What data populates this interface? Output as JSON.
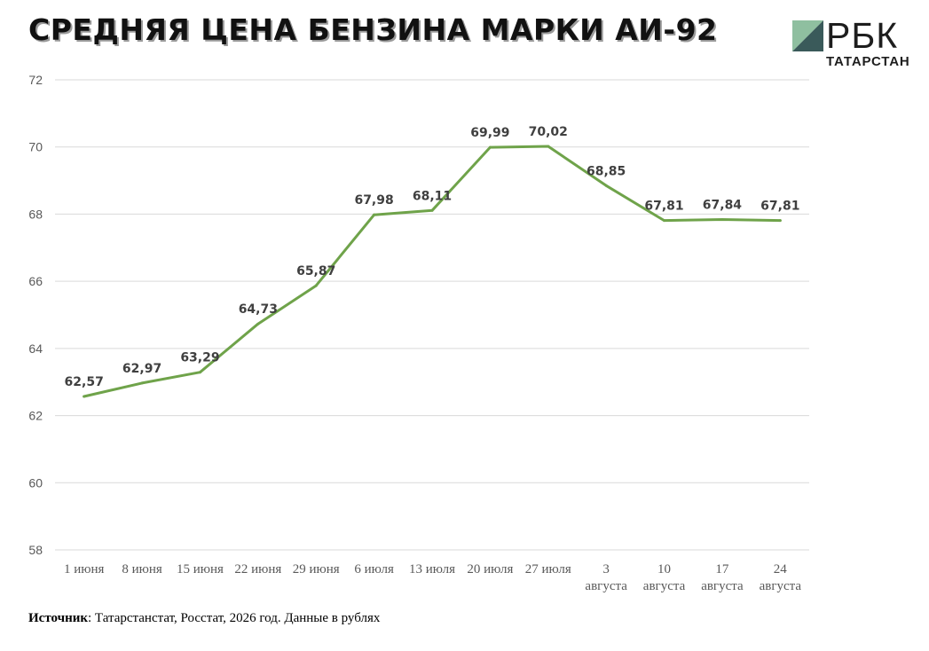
{
  "title": "СРЕДНЯЯ ЦЕНА БЕНЗИНА МАРКИ АИ-92",
  "logo": {
    "name": "РБК",
    "subtitle": "ТАТАРСТАН",
    "colors": {
      "light": "#8fbfa0",
      "dark": "#3a5a5a"
    }
  },
  "source": {
    "label": "Источник",
    "text": ": Татарстанстат, Росстат, 2026 год. Данные в рублях"
  },
  "chart_data": {
    "type": "line",
    "categories": [
      [
        "1 июня"
      ],
      [
        "8 июня"
      ],
      [
        "15 июня"
      ],
      [
        "22 июня"
      ],
      [
        "29 июня"
      ],
      [
        "6 июля"
      ],
      [
        "13 июля"
      ],
      [
        "20 июля"
      ],
      [
        "27 июля"
      ],
      [
        "3",
        "августа"
      ],
      [
        "10",
        "августа"
      ],
      [
        "17",
        "августа"
      ],
      [
        "24",
        "августа"
      ]
    ],
    "series": [
      {
        "values": [
          62.57,
          62.97,
          63.29,
          64.73,
          65.87,
          67.98,
          68.11,
          69.99,
          70.02,
          68.85,
          67.81,
          67.84,
          67.81
        ]
      }
    ],
    "data_labels": [
      "62,57",
      "62,97",
      "63,29",
      "64,73",
      "65,87",
      "67,98",
      "68,11",
      "69,99",
      "70,02",
      "68,85",
      "67,81",
      "67,84",
      "67,81"
    ],
    "y_ticks": [
      58,
      60,
      62,
      64,
      66,
      68,
      70,
      72
    ],
    "ylim": [
      58,
      72
    ],
    "grid": true,
    "legend": "none",
    "colors": {
      "line": "#6fa34a",
      "grid": "#d9d9d9",
      "tick_text": "#595959",
      "label_text": "#404040"
    }
  }
}
